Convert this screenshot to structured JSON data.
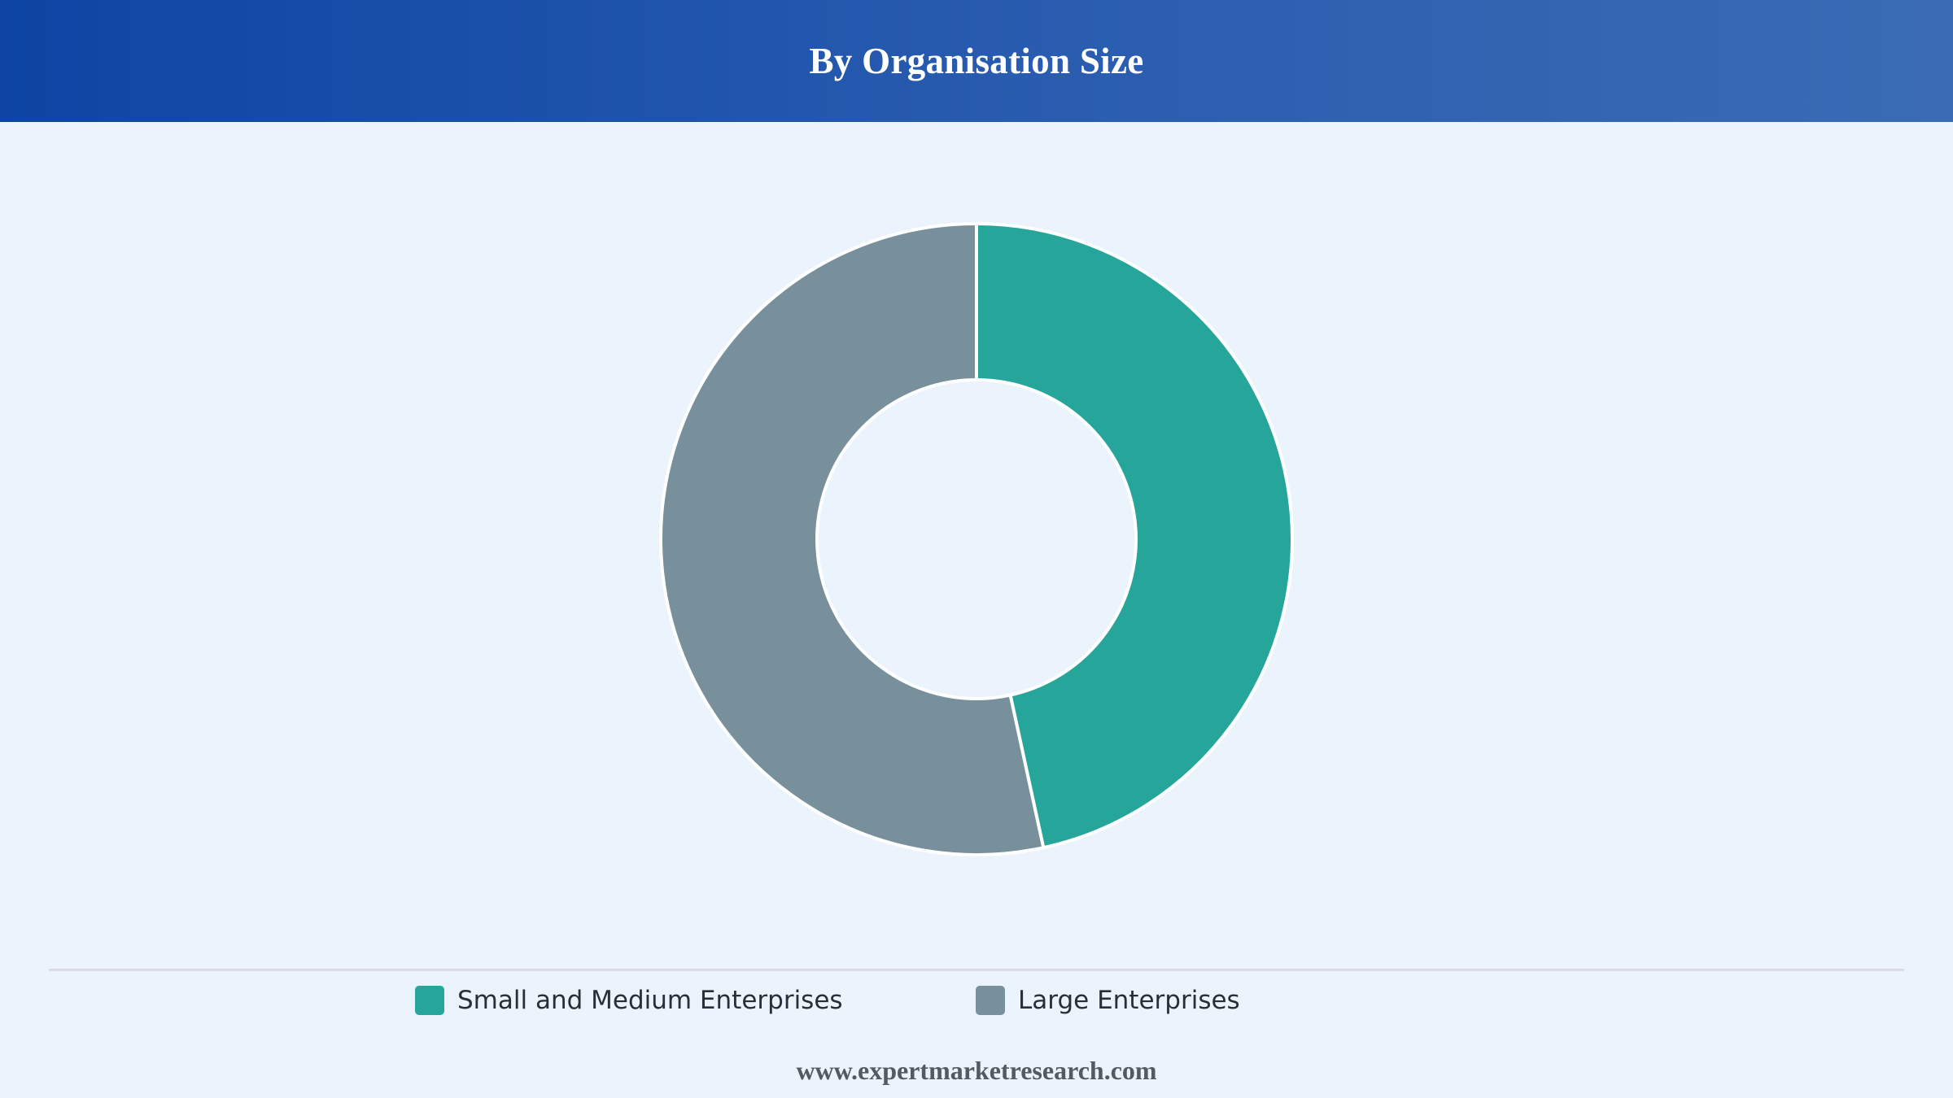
{
  "header": {
    "title": "By Organisation Size"
  },
  "chart_data": {
    "type": "pie",
    "variant": "donut",
    "title": "By Organisation Size",
    "categories": [
      "Small and Medium Enterprises",
      "Large Enterprises"
    ],
    "values": [
      46.6,
      53.4
    ],
    "colors": [
      "#26a69a",
      "#78909c"
    ],
    "legend_position": "bottom"
  },
  "legend": {
    "items": [
      {
        "label": "Small and Medium Enterprises",
        "color": "#26a69a"
      },
      {
        "label": "Large Enterprises",
        "color": "#78909c"
      }
    ]
  },
  "footer": {
    "source": "www.expertmarketresearch.com"
  }
}
